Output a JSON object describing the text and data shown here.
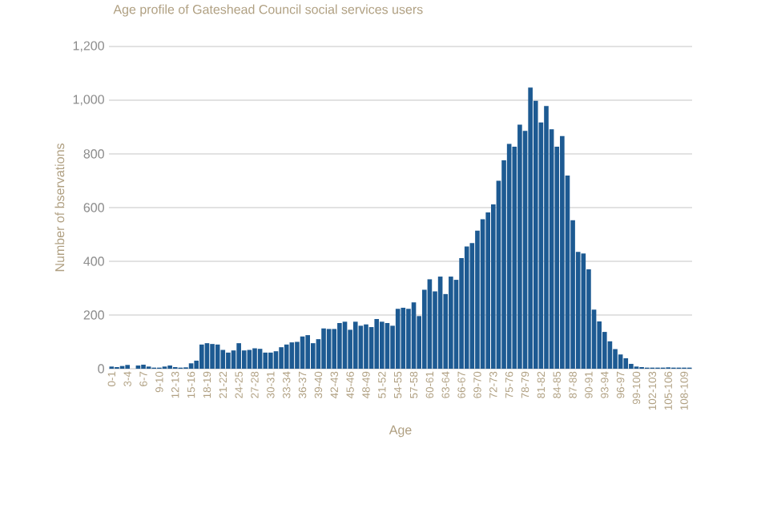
{
  "chart_data": {
    "type": "bar",
    "title": "Age profile of Gateshead Council social services users",
    "xlabel": "Age",
    "ylabel": "Number of bservations",
    "categories": [
      "0-1",
      null,
      null,
      "3-4",
      null,
      null,
      "6-7",
      null,
      null,
      "9-10",
      null,
      null,
      "12-13",
      null,
      null,
      "15-16",
      null,
      null,
      "18-19",
      null,
      null,
      "21-22",
      null,
      null,
      "24-25",
      null,
      null,
      "27-28",
      null,
      null,
      "30-31",
      null,
      null,
      "33-34",
      null,
      null,
      "36-37",
      null,
      null,
      "39-40",
      null,
      null,
      "42-43",
      null,
      null,
      "45-46",
      null,
      null,
      "48-49",
      null,
      null,
      "51-52",
      null,
      null,
      "54-55",
      null,
      null,
      "57-58",
      null,
      null,
      "60-61",
      null,
      null,
      "63-64",
      null,
      null,
      "66-67",
      null,
      null,
      "69-70",
      null,
      null,
      "72-73",
      null,
      null,
      "75-76",
      null,
      null,
      "78-79",
      null,
      null,
      "81-82",
      null,
      null,
      "84-85",
      null,
      null,
      "87-88",
      null,
      null,
      "90-91",
      null,
      null,
      "93-94",
      null,
      null,
      "96-97",
      null,
      null,
      "99-100",
      null,
      null,
      "102-103",
      null,
      null,
      "105-106",
      null,
      null,
      "108-109",
      null
    ],
    "values": [
      8,
      6,
      10,
      14,
      0,
      12,
      15,
      8,
      4,
      4,
      8,
      12,
      6,
      4,
      5,
      20,
      30,
      90,
      95,
      92,
      90,
      70,
      60,
      68,
      95,
      68,
      70,
      76,
      74,
      60,
      60,
      65,
      80,
      90,
      98,
      100,
      120,
      125,
      95,
      110,
      150,
      148,
      148,
      170,
      175,
      145,
      175,
      160,
      165,
      155,
      185,
      175,
      170,
      160,
      223,
      227,
      223,
      247,
      196,
      294,
      333,
      288,
      343,
      278,
      343,
      331,
      412,
      455,
      468,
      514,
      557,
      582,
      612,
      700,
      776,
      837,
      827,
      909,
      886,
      1047,
      998,
      917,
      978,
      892,
      827,
      866,
      719,
      553,
      435,
      429,
      370,
      220,
      176,
      137,
      102,
      73,
      53,
      39,
      18,
      8,
      6,
      4,
      4,
      4,
      4,
      5,
      4,
      4,
      4,
      4
    ],
    "color": "#1d5a92",
    "ylim": [
      0,
      1200
    ],
    "yticks": [
      0,
      200,
      400,
      600,
      800,
      {
        "value": 1000,
        "label": "1,000"
      },
      {
        "value": 1200,
        "label": "1,200"
      }
    ],
    "grid": "y"
  }
}
